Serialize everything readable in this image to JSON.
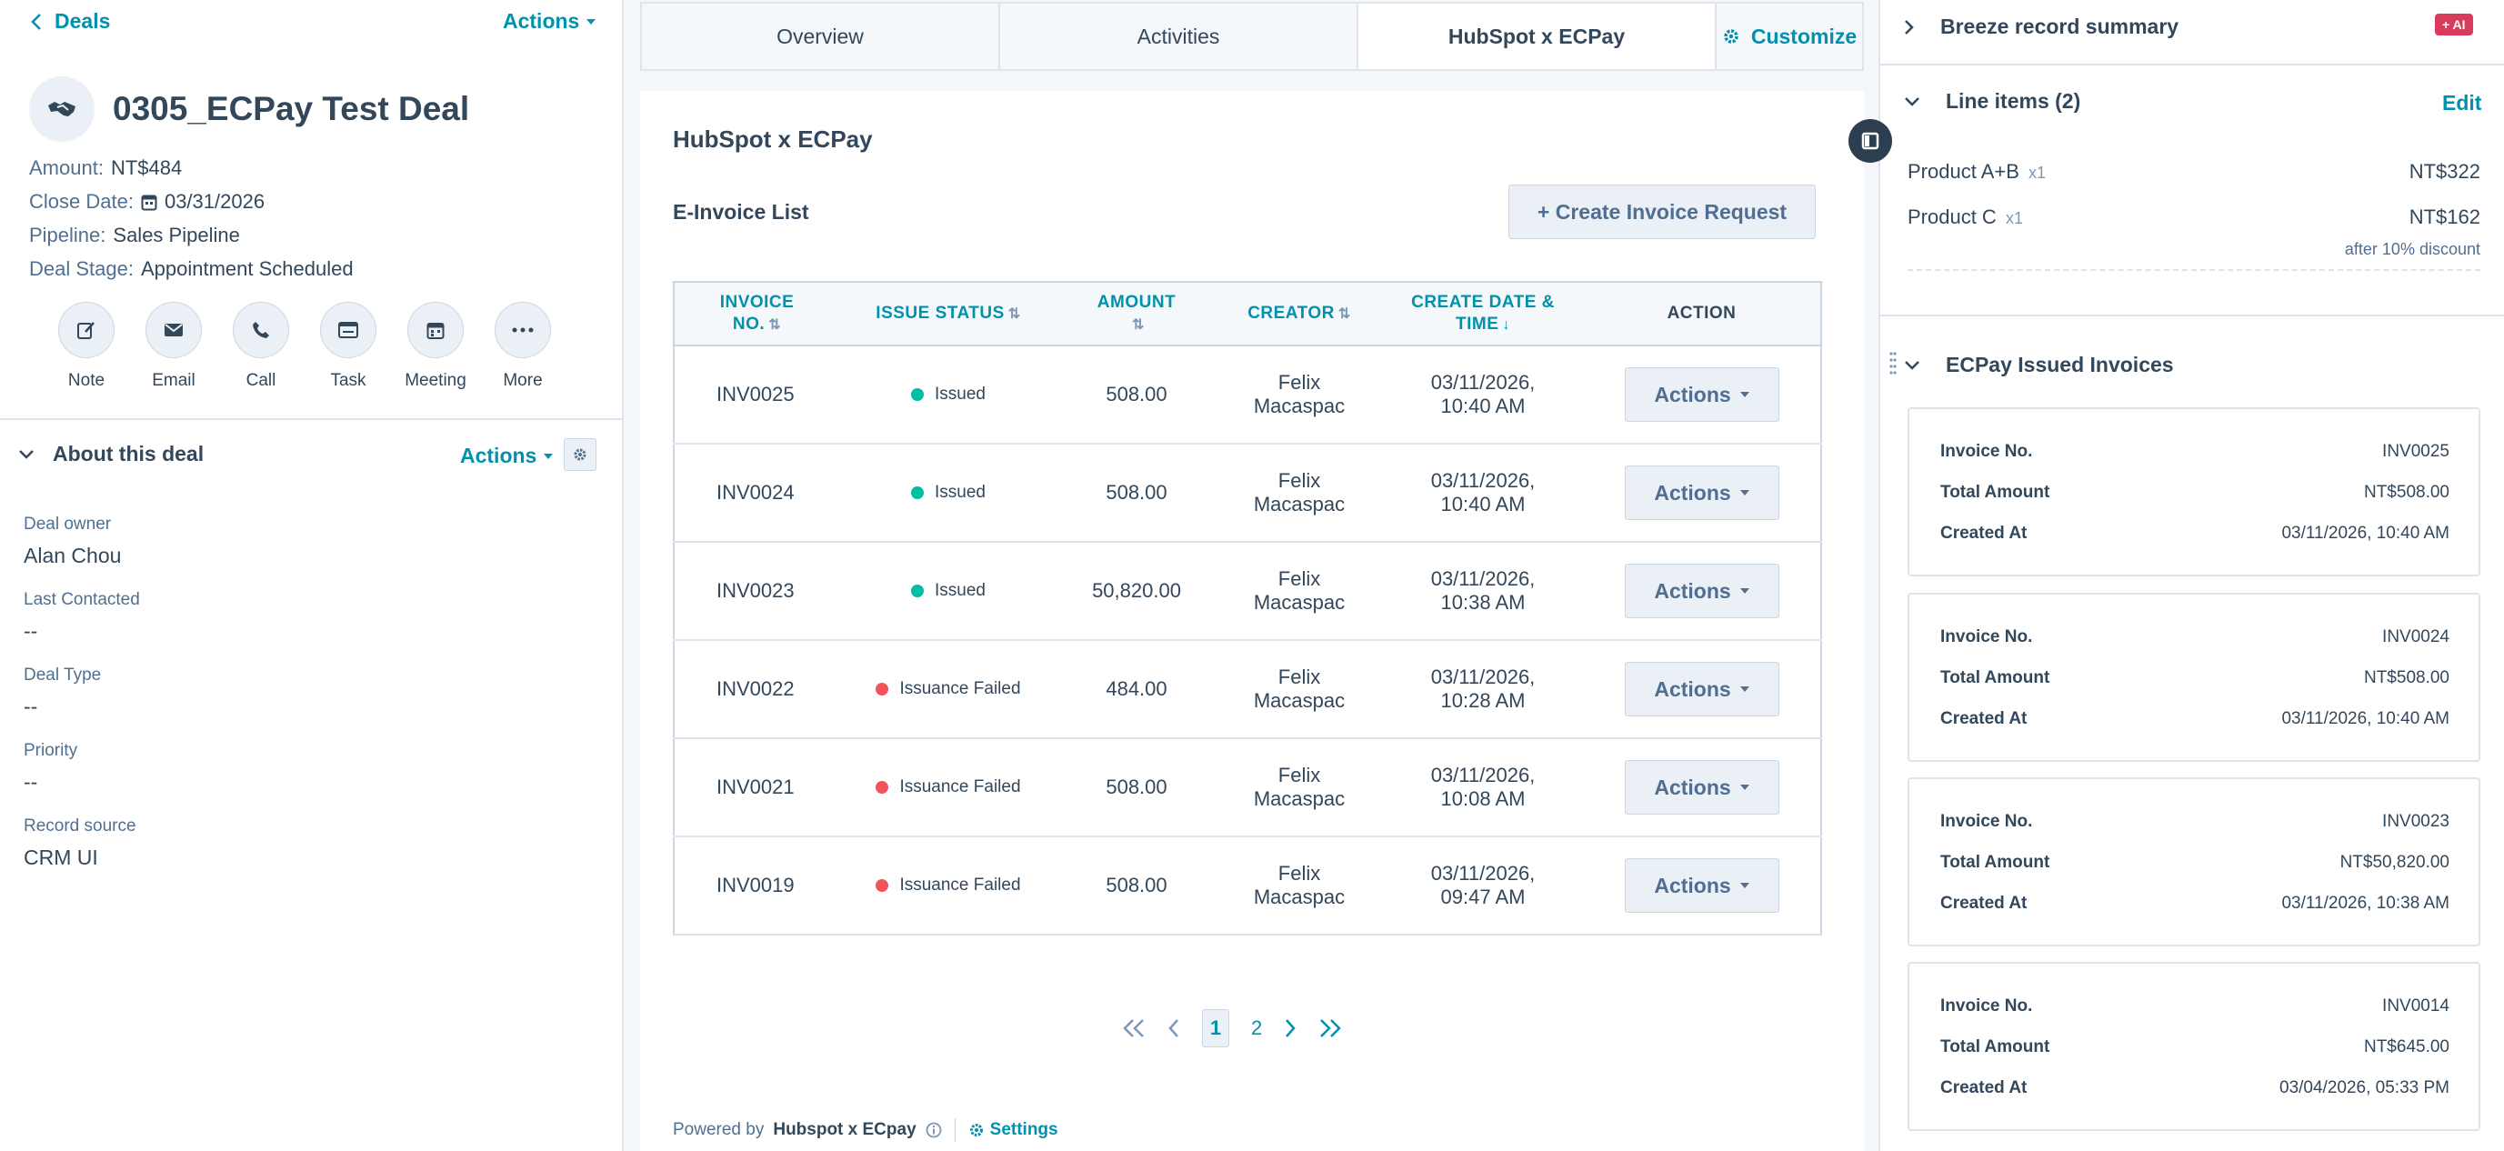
{
  "nav": {
    "back_label": "Deals",
    "actions_label": "Actions"
  },
  "deal": {
    "name": "0305_ECPay Test Deal",
    "amount_label": "Amount:",
    "amount": "NT$484",
    "close_label": "Close Date:",
    "close": "03/31/2026",
    "pipeline_label": "Pipeline:",
    "pipeline": "Sales Pipeline",
    "stage_label": "Deal Stage:",
    "stage": "Appointment Scheduled"
  },
  "quick_actions": [
    {
      "label": "Note",
      "icon": "note-icon"
    },
    {
      "label": "Email",
      "icon": "email-icon"
    },
    {
      "label": "Call",
      "icon": "phone-icon"
    },
    {
      "label": "Task",
      "icon": "task-icon"
    },
    {
      "label": "Meeting",
      "icon": "calendar-icon"
    },
    {
      "label": "More",
      "icon": "more-icon"
    }
  ],
  "about": {
    "title": "About this deal",
    "actions_label": "Actions",
    "fields": [
      {
        "label": "Deal owner",
        "value": "Alan Chou"
      },
      {
        "label": "Last Contacted",
        "value": "--"
      },
      {
        "label": "Deal Type",
        "value": "--"
      },
      {
        "label": "Priority",
        "value": "--"
      },
      {
        "label": "Record source",
        "value": "CRM UI"
      }
    ]
  },
  "tabs": [
    {
      "label": "Overview"
    },
    {
      "label": "Activities"
    },
    {
      "label": "HubSpot x ECPay",
      "active": true
    }
  ],
  "customize_label": "Customize",
  "card": {
    "title": "HubSpot x ECPay",
    "list_title": "E-Invoice List",
    "create_button": "+ Create Invoice Request",
    "columns": {
      "invoice_no_1": "INVOICE",
      "invoice_no_2": "NO.",
      "status": "ISSUE STATUS",
      "amount": "AMOUNT",
      "creator": "CREATOR",
      "date_1": "CREATE DATE &",
      "date_2": "TIME",
      "action": "ACTION"
    },
    "rows": [
      {
        "invoice": "INV0025",
        "status": "Issued",
        "status_color": "#00bda5",
        "amount": "508.00",
        "creator_1": "Felix",
        "creator_2": "Macaspac",
        "date_1": "03/11/2026,",
        "date_2": "10:40 AM",
        "action": "Actions"
      },
      {
        "invoice": "INV0024",
        "status": "Issued",
        "status_color": "#00bda5",
        "amount": "508.00",
        "creator_1": "Felix",
        "creator_2": "Macaspac",
        "date_1": "03/11/2026,",
        "date_2": "10:40 AM",
        "action": "Actions"
      },
      {
        "invoice": "INV0023",
        "status": "Issued",
        "status_color": "#00bda5",
        "amount": "50,820.00",
        "creator_1": "Felix",
        "creator_2": "Macaspac",
        "date_1": "03/11/2026,",
        "date_2": "10:38 AM",
        "action": "Actions"
      },
      {
        "invoice": "INV0022",
        "status": "Issuance Failed",
        "status_color": "#f2545b",
        "amount": "484.00",
        "creator_1": "Felix",
        "creator_2": "Macaspac",
        "date_1": "03/11/2026,",
        "date_2": "10:28 AM",
        "action": "Actions"
      },
      {
        "invoice": "INV0021",
        "status": "Issuance Failed",
        "status_color": "#f2545b",
        "amount": "508.00",
        "creator_1": "Felix",
        "creator_2": "Macaspac",
        "date_1": "03/11/2026,",
        "date_2": "10:08 AM",
        "action": "Actions"
      },
      {
        "invoice": "INV0019",
        "status": "Issuance Failed",
        "status_color": "#f2545b",
        "amount": "508.00",
        "creator_1": "Felix",
        "creator_2": "Macaspac",
        "date_1": "03/11/2026,",
        "date_2": "09:47 AM",
        "action": "Actions"
      }
    ],
    "pagination": {
      "current": "1",
      "next": "2"
    },
    "footer": {
      "powered_prefix": "Powered by",
      "powered_brand": "Hubspot x ECpay",
      "settings_label": "Settings"
    }
  },
  "right": {
    "summary_title": "Breeze record summary",
    "ai_badge": "+ AI",
    "line_items_title": "Line items (2)",
    "edit_label": "Edit",
    "line_items": [
      {
        "name": "Product A+B",
        "qty": "x1",
        "price": "NT$322"
      },
      {
        "name": "Product C",
        "qty": "x1",
        "price": "NT$162"
      }
    ],
    "discount_note": "after 10% discount",
    "issued_title": "ECPay Issued Invoices",
    "labels": {
      "invoice_no": "Invoice No.",
      "total": "Total Amount",
      "created": "Created At"
    },
    "issued": [
      {
        "no": "INV0025",
        "total": "NT$508.00",
        "created": "03/11/2026, 10:40 AM"
      },
      {
        "no": "INV0024",
        "total": "NT$508.00",
        "created": "03/11/2026, 10:40 AM"
      },
      {
        "no": "INV0023",
        "total": "NT$50,820.00",
        "created": "03/11/2026, 10:38 AM"
      },
      {
        "no": "INV0014",
        "total": "NT$645.00",
        "created": "03/04/2026, 05:33 PM"
      }
    ]
  },
  "colors": {
    "accent": "#0091ae",
    "issued": "#00bda5",
    "failed": "#f2545b",
    "ai_badge": "#d93b5c"
  }
}
